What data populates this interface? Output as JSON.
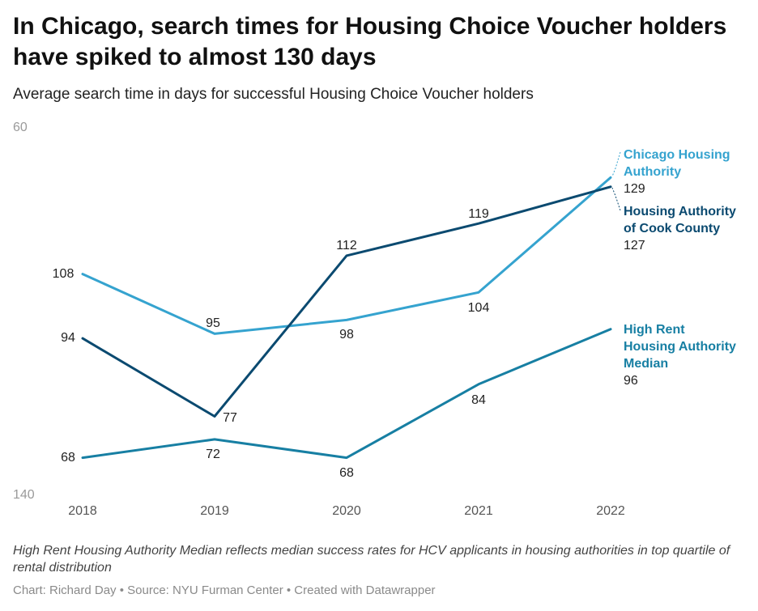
{
  "header": {
    "title": "In Chicago, search times for Housing Choice Voucher holders have spiked to almost 130 days",
    "subtitle": "Average search time in days for successful Housing Choice Voucher holders"
  },
  "footer": {
    "note": "High Rent Housing Authority Median reflects median success rates for HCV applicants in housing authorities in top quartile of rental distribution",
    "source": "Chart: Richard Day • Source: NYU Furman Center • Created with Datawrapper"
  },
  "chart_data": {
    "type": "line",
    "title": "In Chicago, search times for Housing Choice Voucher holders have spiked to almost 130 days",
    "subtitle": "Average search time in days for successful Housing Choice Voucher holders",
    "xlabel": "",
    "ylabel": "",
    "categories": [
      "2018",
      "2019",
      "2020",
      "2021",
      "2022"
    ],
    "ylim": [
      60,
      140
    ],
    "yticks": [
      "60",
      "140"
    ],
    "grid": false,
    "series": [
      {
        "name_lines": [
          "Chicago Housing",
          "Authority"
        ],
        "values": [
          108,
          95,
          98,
          104,
          129
        ],
        "labels": [
          "108",
          "95",
          "98",
          "104",
          "129"
        ],
        "color": "#35a3cf"
      },
      {
        "name_lines": [
          "Housing Authority",
          "of Cook County"
        ],
        "values": [
          94,
          77,
          112,
          119,
          127
        ],
        "labels": [
          "94",
          "77",
          "112",
          "119",
          "127"
        ],
        "color": "#0b4a70"
      },
      {
        "name_lines": [
          "High Rent",
          "Housing Authority",
          "Median"
        ],
        "values": [
          68,
          72,
          68,
          84,
          96
        ],
        "labels": [
          "68",
          "72",
          "68",
          "84",
          "96"
        ],
        "color": "#177fa3"
      }
    ]
  }
}
